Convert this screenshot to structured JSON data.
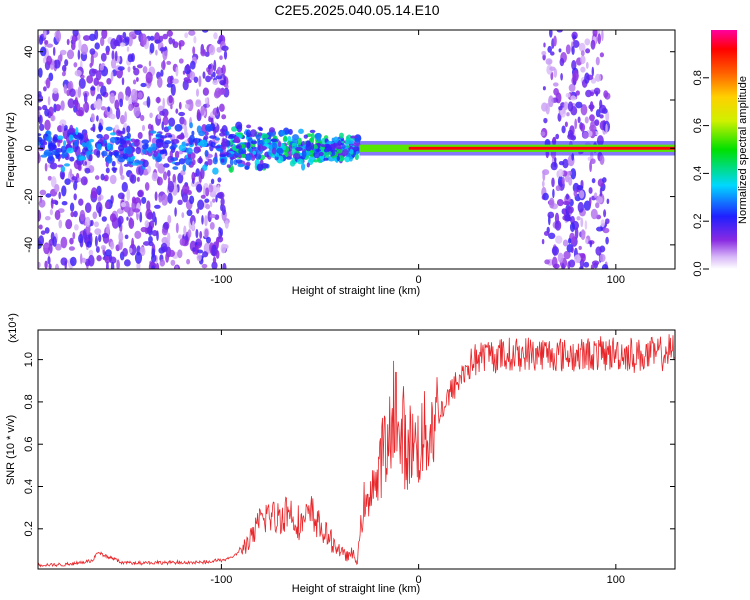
{
  "title": "C2E5.2025.040.05.14.E10",
  "colors": {
    "snr_line": "#e8262a",
    "axis": "#000000"
  },
  "chart_data": [
    {
      "type": "heatmap",
      "name": "spectrogram",
      "xlabel": "Height of straight line (km)",
      "ylabel": "Frequency (Hz)",
      "xlim": [
        -193,
        130
      ],
      "ylim": [
        -50,
        49
      ],
      "x_ticks": [
        -100,
        0,
        100
      ],
      "x_tick_labels": [
        "-100",
        "0",
        "100"
      ],
      "y_ticks": [
        -40,
        -20,
        0,
        20,
        40
      ],
      "y_tick_labels": [
        "-40",
        "-20",
        "0",
        "20",
        "40"
      ],
      "colorbar": {
        "label": "Normalized spectral amplitude",
        "range": [
          0.0,
          1.0
        ],
        "ticks": [
          0.0,
          0.2,
          0.4,
          0.6,
          0.8
        ],
        "tick_labels": [
          "0.0",
          "0.2",
          "0.4",
          "0.6",
          "0.8"
        ],
        "colormap": "rainbow (white → violet → blue → cyan → green → yellow → orange → red → magenta)"
      },
      "regions": [
        {
          "x": [
            -193,
            -97
          ],
          "f": [
            -50,
            49
          ],
          "amp": 0.18,
          "kind": "broadband noise"
        },
        {
          "x": [
            -97,
            -30
          ],
          "f": [
            -12,
            10
          ],
          "amp": 0.45,
          "kind": "scattered blobs near 0 Hz"
        },
        {
          "x": [
            -30,
            130
          ],
          "f": [
            -1.5,
            1.5
          ],
          "amp": 0.95,
          "kind": "narrow line at 0 Hz"
        },
        {
          "x": [
            63,
            96
          ],
          "f": [
            -50,
            49
          ],
          "amp": 0.2,
          "kind": "broadband noise"
        }
      ]
    },
    {
      "type": "line",
      "name": "snr",
      "xlabel": "Height of straight line (km)",
      "ylabel": "SNR (10 * v/v)",
      "y_multiplier_label": "(x10⁴)",
      "xlim": [
        -193,
        130
      ],
      "ylim": [
        0.01,
        1.14
      ],
      "x_ticks": [
        -100,
        0,
        100
      ],
      "x_tick_labels": [
        "-100",
        "0",
        "100"
      ],
      "y_ticks": [
        0.2,
        0.4,
        0.6,
        0.8,
        1.0
      ],
      "y_tick_labels": [
        "0.2",
        "0.4",
        "0.6",
        "0.8",
        "1.0"
      ],
      "series": [
        {
          "x": [
            -193,
            -180,
            -165,
            -163,
            -150,
            -130,
            -110,
            -95,
            -85,
            -78,
            -72,
            -66,
            -60,
            -54,
            -48,
            -42,
            -37,
            -34,
            -31,
            -28,
            -26,
            -24,
            -22,
            -20,
            -18,
            -16,
            -14,
            -12,
            -10,
            -8,
            -6,
            -4,
            -2,
            0,
            5,
            10,
            15,
            20,
            25,
            30,
            35,
            45,
            60,
            80,
            100,
            115,
            130
          ],
          "y": [
            0.03,
            0.03,
            0.05,
            0.09,
            0.04,
            0.04,
            0.04,
            0.06,
            0.15,
            0.27,
            0.25,
            0.29,
            0.22,
            0.27,
            0.18,
            0.12,
            0.07,
            0.08,
            0.05,
            0.32,
            0.28,
            0.45,
            0.4,
            0.43,
            0.62,
            0.5,
            0.7,
            0.88,
            0.55,
            0.68,
            0.52,
            0.62,
            0.58,
            0.6,
            0.66,
            0.74,
            0.82,
            0.9,
            0.97,
            1.01,
            1.02,
            1.02,
            1.03,
            1.02,
            1.03,
            1.02,
            1.04
          ]
        }
      ]
    }
  ]
}
